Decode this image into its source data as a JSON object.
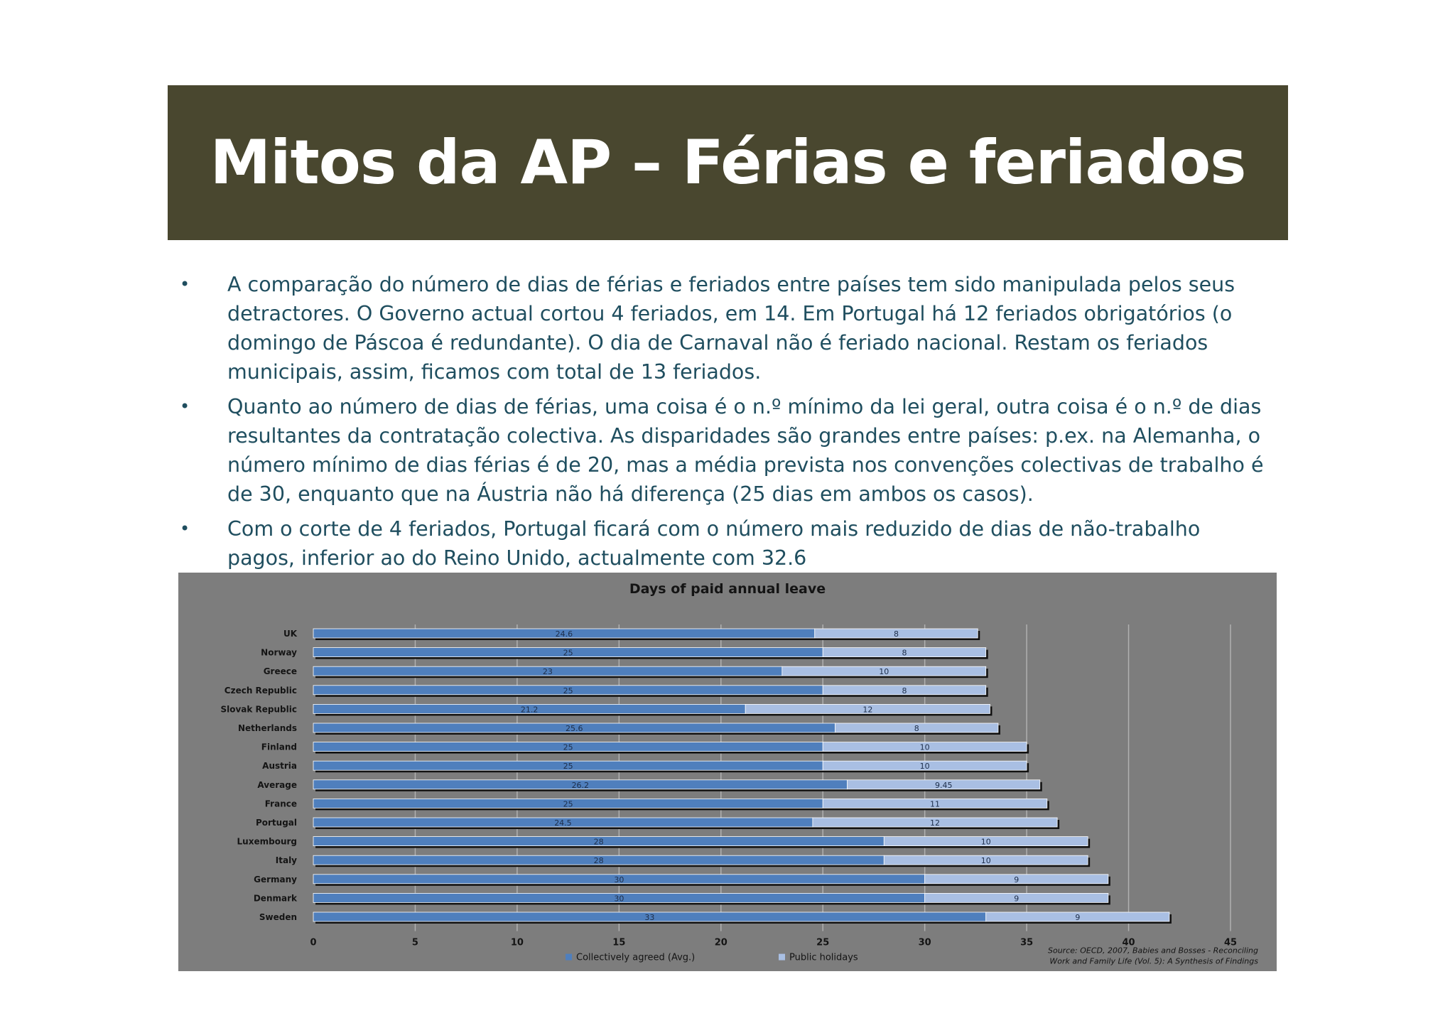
{
  "slide": {
    "title": "Mitos da AP – Férias e feriados",
    "bullets": [
      "A comparação do número de dias de férias e feriados entre países tem sido manipulada pelos seus detractores. O Governo actual cortou 4 feriados, em 14. Em Portugal há 12 feriados obrigatórios (o domingo de Páscoa é redundante). O dia de Carnaval não é feriado nacional. Restam os feriados municipais, assim, ficamos com total de 13 feriados.",
      "Quanto ao número de dias de férias, uma coisa é o n.º mínimo da lei geral, outra coisa é o n.º de dias resultantes da contratação colectiva. As disparidades são grandes entre países: p.ex. na Alemanha, o número mínimo de dias férias é de 20, mas a média prevista nos convenções colectivas de trabalho é de 30, enquanto que na Áustria não há diferença (25 dias em ambos os casos).",
      "Com o corte de 4 feriados, Portugal ficará com o número mais reduzido de dias de não-trabalho pagos, inferior ao do Reino Unido, actualmente com 32.6"
    ]
  },
  "chart_data": {
    "type": "bar",
    "orientation": "horizontal",
    "stacked": true,
    "title": "Days of paid annual leave",
    "categories": [
      "UK",
      "Norway",
      "Greece",
      "Czech Republic",
      "Slovak Republic",
      "Netherlands",
      "Finland",
      "Austria",
      "Average",
      "France",
      "Portugal",
      "Luxembourg",
      "Italy",
      "Germany",
      "Denmark",
      "Sweden"
    ],
    "series": [
      {
        "name": "Collectively agreed (Avg.)",
        "values": [
          24.6,
          25,
          23,
          25,
          21.2,
          25.6,
          25,
          25,
          26.2,
          25,
          24.5,
          28,
          28,
          30,
          30,
          33
        ],
        "labels": [
          "24.6",
          "25",
          "23",
          "25",
          "21.2",
          "25.6",
          "25",
          "25",
          "26.2",
          "25",
          "24.5",
          "28",
          "28",
          "30",
          "30",
          "33"
        ],
        "color": "#4f7fbd"
      },
      {
        "name": "Public holidays",
        "values": [
          8,
          8,
          10,
          8,
          12,
          8,
          10,
          10,
          9.45,
          11,
          12,
          10,
          10,
          9,
          9,
          9
        ],
        "labels": [
          "8",
          "8",
          "10",
          "8",
          "12",
          "8",
          "10",
          "10",
          "9.45",
          "11",
          "12",
          "10",
          "10",
          "9",
          "9",
          "9"
        ],
        "color": "#a9bfe3"
      }
    ],
    "xlim": [
      0,
      45
    ],
    "xticks": [
      "0",
      "5",
      "10",
      "15",
      "20",
      "25",
      "30",
      "35",
      "40",
      "45"
    ],
    "grid": true,
    "legend_placement": "bottom",
    "source": [
      "Source: OECD, 2007, Babies and Bosses - Reconciling",
      "Work and Family Life (Vol. 5): A Synthesis of Findings"
    ]
  },
  "colors": {
    "title_bar": "#49472f",
    "bullet_text": "#1f4e5f",
    "chart_bg": "#7d7d7d"
  }
}
